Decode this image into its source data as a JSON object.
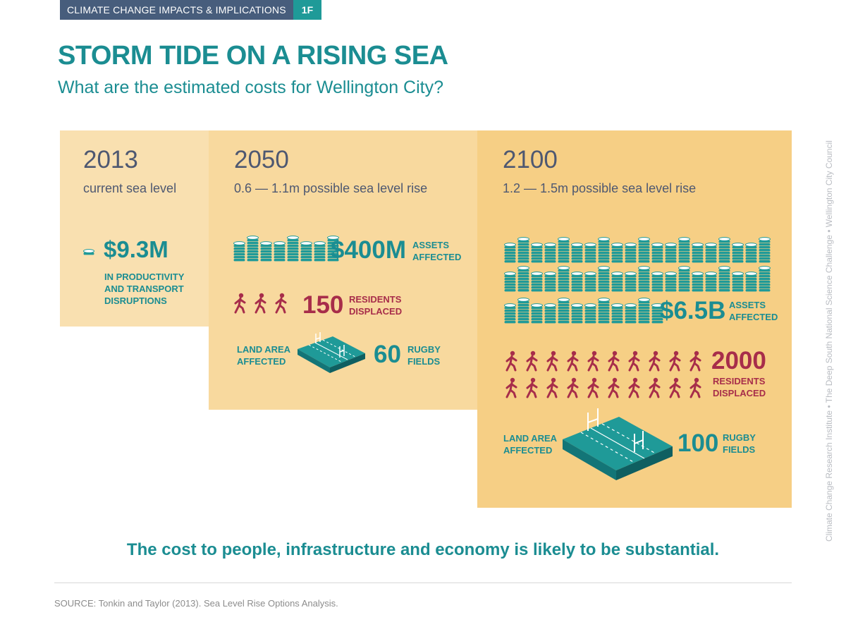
{
  "header": {
    "tag": "CLIMATE CHANGE IMPACTS & IMPLICATIONS",
    "code": "1F"
  },
  "title": "STORM TIDE ON A RISING SEA",
  "subtitle": "What are the estimated costs for Wellington City?",
  "colors": {
    "teal": "#1b8d92",
    "red": "#a72d4a",
    "navy": "#475d7c",
    "panel1": "#f9e0b0",
    "panel2": "#f8d99e",
    "panel3": "#f6cf85"
  },
  "panels": {
    "y2013": {
      "year": "2013",
      "sub": "current sea level",
      "cost": "$9.3M",
      "cost_desc": [
        "IN PRODUCTIVITY",
        "AND TRANSPORT",
        "DISRUPTIONS"
      ],
      "coin_stacks": 1
    },
    "y2050": {
      "year": "2050",
      "sub": "0.6 — 1.1m possible sea level rise",
      "assets": "$400M",
      "assets_label": [
        "ASSETS",
        "AFFECTED"
      ],
      "coin_stacks": 8,
      "residents": "150",
      "residents_label": [
        "RESIDENTS",
        "DISPLACED"
      ],
      "people_icons": 3,
      "land_label": [
        "LAND AREA",
        "AFFECTED"
      ],
      "fields": "60",
      "fields_label": [
        "RUGBY",
        "FIELDS"
      ]
    },
    "y2100": {
      "year": "2100",
      "sub": "1.2 — 1.5m possible sea level rise",
      "assets": "$6.5B",
      "assets_label": [
        "ASSETS",
        "AFFECTED"
      ],
      "coin_stacks": 52,
      "residents": "2000",
      "residents_label": [
        "RESIDENTS",
        "DISPLACED"
      ],
      "people_icons": 20,
      "land_label": [
        "LAND AREA",
        "AFFECTED"
      ],
      "fields": "100",
      "fields_label": [
        "RUGBY",
        "FIELDS"
      ]
    }
  },
  "icons": {
    "coin": "coin-stack-icon",
    "person": "person-walking-icon",
    "field": "rugby-field-icon"
  },
  "conclusion": "The cost to people, infrastructure and economy is likely to be substantial.",
  "source": "SOURCE: Tonkin and Taylor (2013). Sea Level Rise Options Analysis.",
  "sidebar": "Climate Change Research Institute  •  The Deep South National Science Challenge  •  Wellington City Council"
}
